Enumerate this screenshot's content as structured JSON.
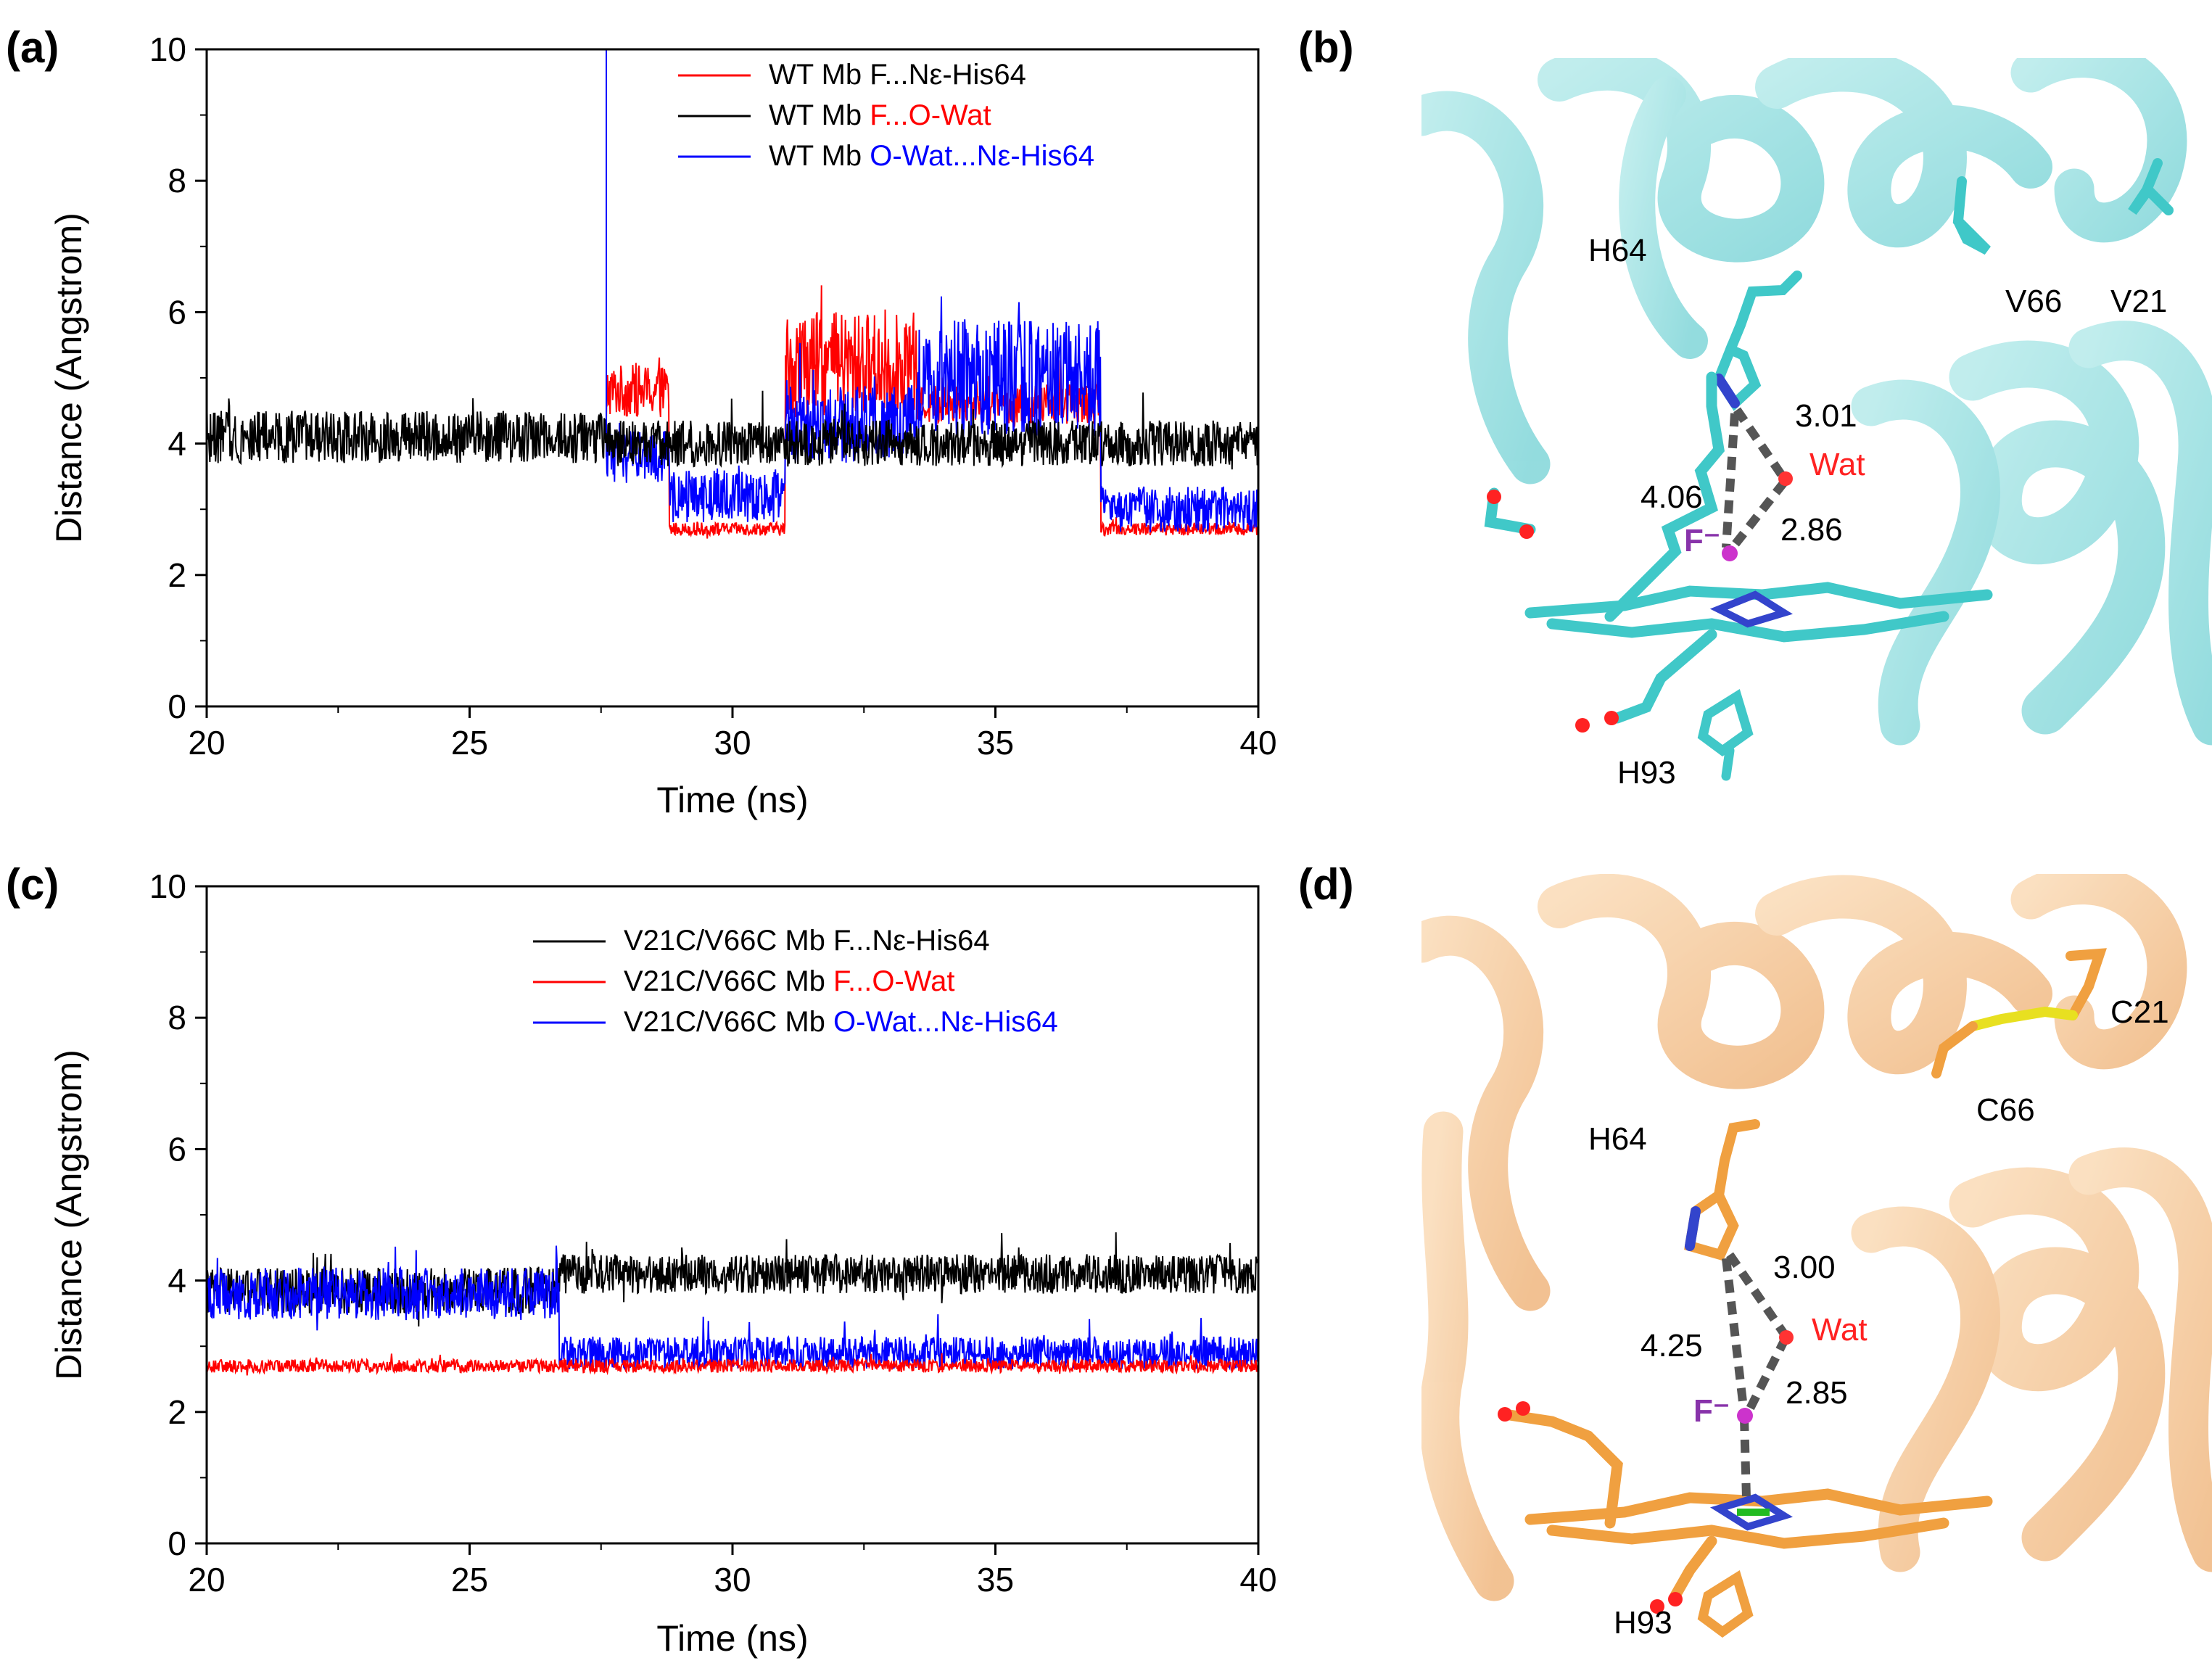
{
  "panel_labels": [
    "(a)",
    "(b)",
    "(c)",
    "(d)"
  ],
  "chart_data": [
    {
      "type": "line",
      "panel": "(a)",
      "xlabel": "Time (ns)",
      "ylabel": "Distance (Angstrom)",
      "xlim": [
        20,
        40
      ],
      "ylim": [
        0,
        10
      ],
      "xticks": [
        20,
        25,
        30,
        35,
        40
      ],
      "yticks": [
        0,
        2,
        4,
        6,
        8,
        10
      ],
      "legend_position": "top-right",
      "series": [
        {
          "name": "WT Mb F...Nε-His64",
          "prefix": "WT Mb ",
          "suffix": "F...Nε-His64",
          "suffix_color": "#000000",
          "color": "#ff0000",
          "segments": [
            [
              27.6,
              4.2,
              0.3
            ],
            [
              28.8,
              4.8,
              0.4
            ],
            [
              31.0,
              2.7,
              0.1
            ],
            [
              33.5,
              5.2,
              0.8
            ],
            [
              37.0,
              4.6,
              0.3
            ],
            [
              40,
              2.7,
              0.1
            ]
          ],
          "start": 27.6,
          "spike": [
            27.6,
            10.0
          ]
        },
        {
          "name": "WT Mb F...O-Wat",
          "prefix": "WT Mb ",
          "suffix": "F...O-Wat",
          "suffix_color": "#ff0000",
          "color": "#000000",
          "segments": [
            [
              27.6,
              4.1,
              0.4
            ],
            [
              40,
              4.0,
              0.35
            ]
          ],
          "start": 20
        },
        {
          "name": "WT Mb O-Wat...Nε-His64",
          "prefix": "WT Mb ",
          "suffix": "O-Wat...Nε-His64",
          "suffix_color": "#0000ff",
          "color": "#0000ff",
          "segments": [
            [
              28.8,
              3.8,
              0.4
            ],
            [
              31.0,
              3.2,
              0.4
            ],
            [
              33.5,
              4.3,
              0.6
            ],
            [
              37.0,
              5.0,
              0.9
            ],
            [
              40,
              3.0,
              0.35
            ]
          ],
          "start": 27.6,
          "spike": [
            27.6,
            10.0
          ]
        }
      ]
    },
    {
      "type": "line",
      "panel": "(c)",
      "xlabel": "Time (ns)",
      "ylabel": "Distance (Angstrom)",
      "xlim": [
        20,
        40
      ],
      "ylim": [
        0,
        10
      ],
      "xticks": [
        20,
        25,
        30,
        35,
        40
      ],
      "yticks": [
        0,
        2,
        4,
        6,
        8,
        10
      ],
      "legend_position": "top-right",
      "series": [
        {
          "name": "V21C/V66C Mb F...Nε-His64",
          "prefix": "V21C/V66C Mb ",
          "suffix": "F...Nε-His64",
          "suffix_color": "#000000",
          "color": "#000000",
          "segments": [
            [
              26.7,
              3.85,
              0.35
            ],
            [
              40,
              4.1,
              0.3
            ]
          ],
          "start": 20
        },
        {
          "name": "V21C/V66C Mb F...O-Wat",
          "prefix": "V21C/V66C Mb ",
          "suffix": "F...O-Wat",
          "suffix_color": "#ff0000",
          "color": "#ff0000",
          "segments": [
            [
              40,
              2.7,
              0.1
            ]
          ],
          "start": 20
        },
        {
          "name": "V21C/V66C Mb O-Wat...Nε-His64",
          "prefix": "V21C/V66C Mb ",
          "suffix": "O-Wat...Nε-His64",
          "suffix_color": "#0000ff",
          "color": "#0000ff",
          "segments": [
            [
              26.7,
              3.8,
              0.4
            ],
            [
              40,
              2.9,
              0.25
            ]
          ],
          "start": 20
        }
      ]
    }
  ],
  "structure_b": {
    "residues": [
      "H64",
      "V66",
      "V21",
      "H93"
    ],
    "water_label": "Wat",
    "fluoride_label": "F⁻",
    "distances": [
      "3.01",
      "4.06",
      "2.86"
    ],
    "color": "#40c8c8"
  },
  "structure_d": {
    "residues": [
      "H64",
      "C66",
      "C21",
      "H93"
    ],
    "water_label": "Wat",
    "fluoride_label": "F⁻",
    "distances": [
      "3.00",
      "4.25",
      "2.85"
    ],
    "color": "#f0a040"
  }
}
